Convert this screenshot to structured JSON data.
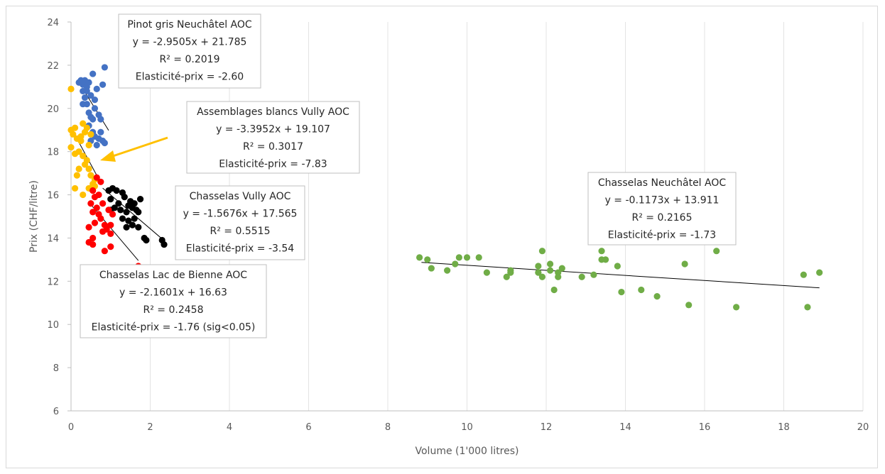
{
  "chart_data": {
    "type": "scatter",
    "xlabel": "Volume (1'000 litres)",
    "ylabel": "Prix (CHF/litre)",
    "xlim": [
      0,
      20
    ],
    "ylim": [
      6,
      24
    ],
    "x_ticks": [
      "0",
      "2",
      "4",
      "6",
      "8",
      "10",
      "12",
      "14",
      "16",
      "18",
      "20"
    ],
    "y_ticks": [
      "6",
      "8",
      "10",
      "12",
      "14",
      "16",
      "18",
      "20",
      "22",
      "24"
    ],
    "grid": "vertical",
    "colors": {
      "pinot": "#4472c4",
      "vully_blanc": "#ffc000",
      "vully_chasselas": "#000000",
      "bienne": "#ff0000",
      "neuchatel": "#70ad47",
      "arrow": "#ffc000"
    },
    "series": [
      {
        "key": "pinot",
        "trend_x": [
          0.3,
          0.95
        ],
        "slope": -2.9505,
        "intercept": 21.785,
        "points": [
          [
            0.2,
            21.2
          ],
          [
            0.25,
            21.3
          ],
          [
            0.35,
            21.3
          ],
          [
            0.3,
            21.1
          ],
          [
            0.4,
            21.0
          ],
          [
            0.45,
            21.2
          ],
          [
            0.3,
            20.8
          ],
          [
            0.35,
            20.5
          ],
          [
            0.5,
            20.6
          ],
          [
            0.6,
            20.4
          ],
          [
            0.65,
            20.9
          ],
          [
            0.8,
            21.1
          ],
          [
            0.85,
            21.9
          ],
          [
            0.55,
            21.6
          ],
          [
            0.4,
            20.2
          ],
          [
            0.3,
            20.2
          ],
          [
            0.45,
            19.8
          ],
          [
            0.5,
            19.6
          ],
          [
            0.55,
            19.5
          ],
          [
            0.7,
            19.7
          ],
          [
            0.75,
            19.5
          ],
          [
            0.45,
            19.2
          ],
          [
            0.55,
            18.9
          ],
          [
            0.6,
            18.7
          ],
          [
            0.7,
            18.6
          ],
          [
            0.8,
            18.5
          ],
          [
            0.85,
            18.4
          ],
          [
            0.5,
            18.5
          ],
          [
            0.65,
            18.3
          ],
          [
            0.75,
            18.9
          ],
          [
            0.6,
            20.0
          ],
          [
            0.4,
            20.8
          ]
        ]
      },
      {
        "key": "vully_blanc",
        "trend_x": [
          0.05,
          0.75
        ],
        "slope": -3.3952,
        "intercept": 19.107,
        "points": [
          [
            0.0,
            20.9
          ],
          [
            0.0,
            19.0
          ],
          [
            0.1,
            19.1
          ],
          [
            0.05,
            18.8
          ],
          [
            0.15,
            18.6
          ],
          [
            0.3,
            19.3
          ],
          [
            0.35,
            18.9
          ],
          [
            0.25,
            18.5
          ],
          [
            0.2,
            18.0
          ],
          [
            0.0,
            18.2
          ],
          [
            0.1,
            17.9
          ],
          [
            0.3,
            17.8
          ],
          [
            0.4,
            17.6
          ],
          [
            0.35,
            17.4
          ],
          [
            0.45,
            17.2
          ],
          [
            0.2,
            17.2
          ],
          [
            0.15,
            16.9
          ],
          [
            0.5,
            16.9
          ],
          [
            0.6,
            16.7
          ],
          [
            0.55,
            16.5
          ],
          [
            0.45,
            16.3
          ],
          [
            0.6,
            16.4
          ],
          [
            0.55,
            16.2
          ],
          [
            0.3,
            16.0
          ],
          [
            0.1,
            16.3
          ],
          [
            0.25,
            18.7
          ],
          [
            0.45,
            18.3
          ],
          [
            0.5,
            18.8
          ],
          [
            0.4,
            19.1
          ]
        ]
      },
      {
        "key": "vully_chasselas",
        "trend_x": [
          0.8,
          2.35
        ],
        "slope": -1.5676,
        "intercept": 17.565,
        "points": [
          [
            0.95,
            16.2
          ],
          [
            1.05,
            16.3
          ],
          [
            1.15,
            16.2
          ],
          [
            1.3,
            16.1
          ],
          [
            1.35,
            15.9
          ],
          [
            1.0,
            15.8
          ],
          [
            1.2,
            15.6
          ],
          [
            1.5,
            15.7
          ],
          [
            1.6,
            15.6
          ],
          [
            1.75,
            15.8
          ],
          [
            1.55,
            15.4
          ],
          [
            1.65,
            15.3
          ],
          [
            1.1,
            15.4
          ],
          [
            1.4,
            15.2
          ],
          [
            1.7,
            15.2
          ],
          [
            1.3,
            14.9
          ],
          [
            1.45,
            14.8
          ],
          [
            1.6,
            14.9
          ],
          [
            1.7,
            14.5
          ],
          [
            1.4,
            14.5
          ],
          [
            1.85,
            14.0
          ],
          [
            1.9,
            13.9
          ],
          [
            2.3,
            13.9
          ],
          [
            2.35,
            13.7
          ],
          [
            1.0,
            15.3
          ],
          [
            1.25,
            15.3
          ],
          [
            1.55,
            14.6
          ],
          [
            1.45,
            15.5
          ]
        ]
      },
      {
        "key": "bienne",
        "trend_x": [
          0.45,
          1.7
        ],
        "slope": -2.1601,
        "intercept": 16.63,
        "points": [
          [
            0.65,
            16.8
          ],
          [
            0.75,
            16.6
          ],
          [
            0.55,
            16.2
          ],
          [
            0.6,
            15.9
          ],
          [
            0.7,
            16.0
          ],
          [
            0.5,
            15.6
          ],
          [
            0.65,
            15.4
          ],
          [
            0.55,
            15.2
          ],
          [
            0.7,
            15.1
          ],
          [
            0.95,
            15.3
          ],
          [
            1.05,
            15.1
          ],
          [
            0.75,
            14.9
          ],
          [
            0.85,
            14.6
          ],
          [
            1.0,
            14.6
          ],
          [
            0.9,
            14.4
          ],
          [
            0.8,
            14.3
          ],
          [
            0.45,
            14.5
          ],
          [
            0.55,
            14.0
          ],
          [
            0.45,
            13.8
          ],
          [
            0.55,
            13.7
          ],
          [
            0.85,
            13.4
          ],
          [
            1.0,
            14.2
          ],
          [
            1.0,
            13.6
          ],
          [
            1.7,
            12.7
          ],
          [
            0.6,
            14.7
          ],
          [
            0.8,
            15.6
          ]
        ]
      },
      {
        "key": "neuchatel",
        "trend_x": [
          8.85,
          18.9
        ],
        "slope": -0.1173,
        "intercept": 13.911,
        "points": [
          [
            8.8,
            13.1
          ],
          [
            9.0,
            13.0
          ],
          [
            9.1,
            12.6
          ],
          [
            9.5,
            12.5
          ],
          [
            9.7,
            12.8
          ],
          [
            9.8,
            13.1
          ],
          [
            10.0,
            13.1
          ],
          [
            10.3,
            13.1
          ],
          [
            10.5,
            12.4
          ],
          [
            11.0,
            12.2
          ],
          [
            11.1,
            12.4
          ],
          [
            11.1,
            12.5
          ],
          [
            11.8,
            12.7
          ],
          [
            11.8,
            12.4
          ],
          [
            11.9,
            12.2
          ],
          [
            11.9,
            13.4
          ],
          [
            12.1,
            12.8
          ],
          [
            12.1,
            12.5
          ],
          [
            12.2,
            11.6
          ],
          [
            12.3,
            12.4
          ],
          [
            12.3,
            12.2
          ],
          [
            12.4,
            12.6
          ],
          [
            12.9,
            12.2
          ],
          [
            13.2,
            12.3
          ],
          [
            13.4,
            13.4
          ],
          [
            13.5,
            13.0
          ],
          [
            13.8,
            12.7
          ],
          [
            13.9,
            11.5
          ],
          [
            14.4,
            11.6
          ],
          [
            14.8,
            11.3
          ],
          [
            15.5,
            12.8
          ],
          [
            15.6,
            10.9
          ],
          [
            16.3,
            13.4
          ],
          [
            16.8,
            10.8
          ],
          [
            18.5,
            12.3
          ],
          [
            18.6,
            10.8
          ],
          [
            18.9,
            12.4
          ],
          [
            13.4,
            13.0
          ]
        ]
      }
    ],
    "annotations": [
      {
        "key": "pinot",
        "lines": [
          "Pinot gris Neuchâtel AOC",
          "y = -2.9505x + 21.785",
          "R² = 0.2019",
          "Elasticité-prix = -2.60"
        ]
      },
      {
        "key": "vully_blanc",
        "lines": [
          "Assemblages blancs Vully AOC",
          "y = -3.3952x + 19.107",
          "R² = 0.3017",
          "Elasticité-prix = -7.83"
        ]
      },
      {
        "key": "vully_chasselas",
        "lines": [
          "Chasselas Vully AOC",
          "y = -1.5676x + 17.565",
          "R² = 0.5515",
          "Elasticité-prix = -3.54"
        ]
      },
      {
        "key": "bienne",
        "lines": [
          "Chasselas Lac de Bienne AOC",
          "y = -2.1601x + 16.63",
          "R² = 0.2458",
          "Elasticité-prix = -1.76 (sig<0.05)"
        ]
      },
      {
        "key": "neuchatel",
        "lines": [
          "Chasselas Neuchâtel AOC",
          "y = -0.1173x + 13.911",
          "R² = 0.2165",
          "Elasticité-prix = -1.73"
        ]
      }
    ]
  }
}
